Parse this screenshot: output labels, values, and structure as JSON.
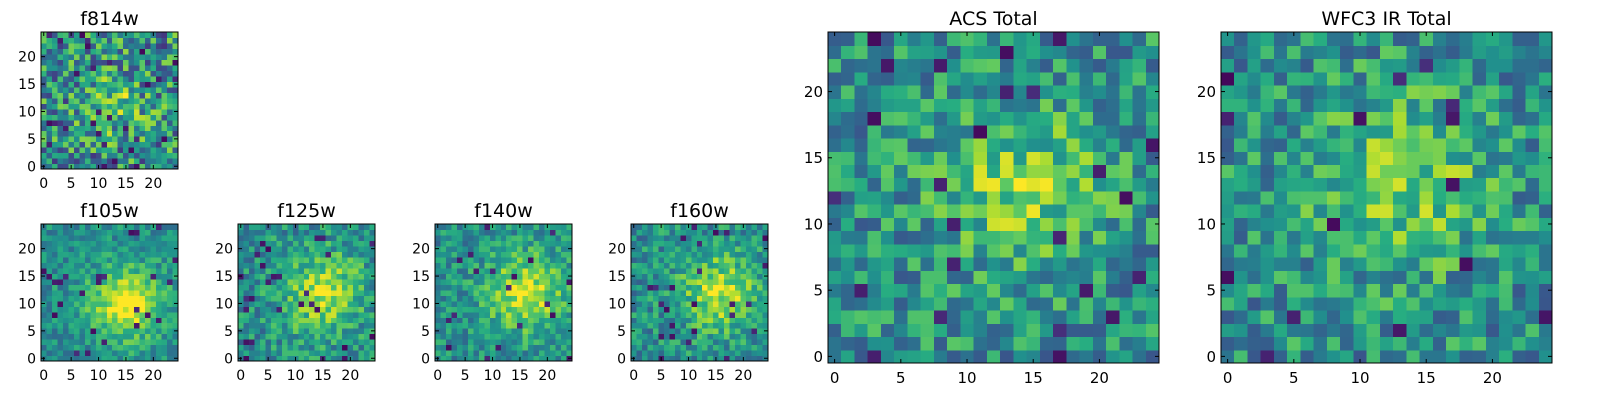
{
  "chart_data": [
    {
      "type": "heatmap",
      "title": "f814w",
      "grid_size": 25,
      "seed": 11,
      "peak": {
        "x": 13,
        "y": 11,
        "sigma": 3.5,
        "amplitude": 0.25
      },
      "noise": 0.34,
      "dark_fraction": 0.04,
      "xticks": [
        0,
        5,
        10,
        15,
        20
      ],
      "yticks": [
        0,
        5,
        10,
        15,
        20
      ],
      "colormap": "viridis",
      "values": []
    },
    {
      "type": "heatmap",
      "title": "f105w",
      "grid_size": 25,
      "seed": 23,
      "peak": {
        "x": 15,
        "y": 10,
        "sigma": 4.5,
        "amplitude": 0.5
      },
      "noise": 0.16,
      "dark_fraction": 0.03,
      "xticks": [
        0,
        5,
        10,
        15,
        20
      ],
      "yticks": [
        0,
        5,
        10,
        15,
        20
      ],
      "colormap": "viridis",
      "values": []
    },
    {
      "type": "heatmap",
      "title": "f125w",
      "grid_size": 25,
      "seed": 37,
      "peak": {
        "x": 15,
        "y": 12,
        "sigma": 5,
        "amplitude": 0.38
      },
      "noise": 0.2,
      "dark_fraction": 0.05,
      "xticks": [
        0,
        5,
        10,
        15,
        20
      ],
      "yticks": [
        0,
        5,
        10,
        15,
        20
      ],
      "colormap": "viridis",
      "values": []
    },
    {
      "type": "heatmap",
      "title": "f140w",
      "grid_size": 25,
      "seed": 41,
      "peak": {
        "x": 16,
        "y": 12,
        "sigma": 5,
        "amplitude": 0.42
      },
      "noise": 0.18,
      "dark_fraction": 0.04,
      "xticks": [
        0,
        5,
        10,
        15,
        20
      ],
      "yticks": [
        0,
        5,
        10,
        15,
        20
      ],
      "colormap": "viridis",
      "values": []
    },
    {
      "type": "heatmap",
      "title": "f160w",
      "grid_size": 25,
      "seed": 53,
      "peak": {
        "x": 16,
        "y": 12,
        "sigma": 5,
        "amplitude": 0.4
      },
      "noise": 0.2,
      "dark_fraction": 0.05,
      "xticks": [
        0,
        5,
        10,
        15,
        20
      ],
      "yticks": [
        0,
        5,
        10,
        15,
        20
      ],
      "colormap": "viridis",
      "values": []
    },
    {
      "type": "heatmap",
      "title": "ACS Total",
      "grid_size": 25,
      "seed": 67,
      "peak": {
        "x": 14,
        "y": 13,
        "sigma": 4.5,
        "amplitude": 0.3
      },
      "noise": 0.24,
      "dark_fraction": 0.035,
      "xticks": [
        0,
        5,
        10,
        15,
        20
      ],
      "yticks": [
        0,
        5,
        10,
        15,
        20
      ],
      "colormap": "viridis",
      "values": []
    },
    {
      "type": "heatmap",
      "title": "WFC3 IR Total",
      "grid_size": 25,
      "seed": 79,
      "peak": {
        "x": 13,
        "y": 13,
        "sigma": 4.5,
        "amplitude": 0.3
      },
      "noise": 0.24,
      "dark_fraction": 0.03,
      "xticks": [
        0,
        5,
        10,
        15,
        20
      ],
      "yticks": [
        0,
        5,
        10,
        15,
        20
      ],
      "colormap": "viridis",
      "values": []
    }
  ]
}
